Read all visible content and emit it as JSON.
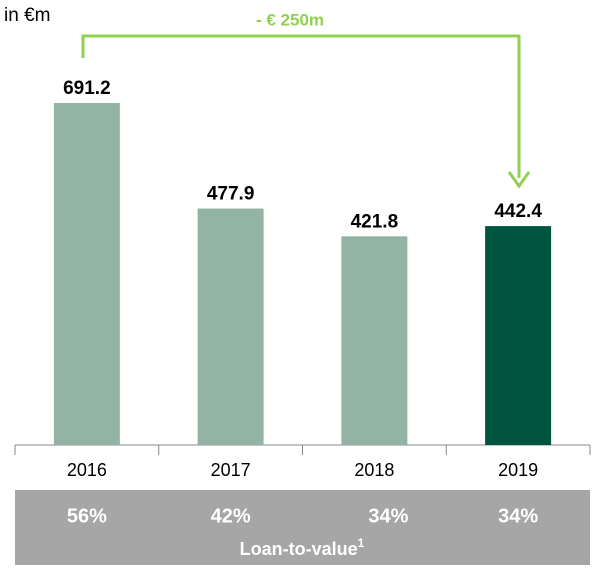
{
  "chart_data": {
    "type": "bar",
    "unit_label": "in €m",
    "annotation": "- € 250m",
    "categories": [
      "2016",
      "2017",
      "2018",
      "2019"
    ],
    "values": [
      691.2,
      477.9,
      421.8,
      442.4
    ],
    "colors": [
      "#93b3a5",
      "#93b3a5",
      "#93b3a5",
      "#005541"
    ],
    "table": {
      "values": [
        "56%",
        "42%",
        "34%",
        "34%"
      ],
      "label": "Loan-to-value",
      "footnote": "1"
    }
  }
}
